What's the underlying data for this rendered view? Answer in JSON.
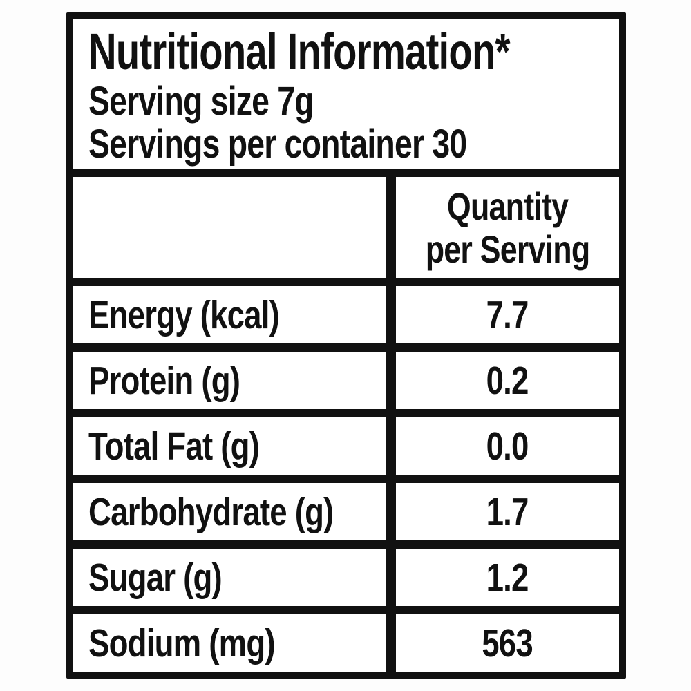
{
  "label": {
    "title": "Nutritional Information*",
    "serving_size": "Serving size 7g",
    "servings_per_container": "Servings per container 30",
    "column_header": {
      "line1": "Quantity",
      "line2": "per Serving"
    },
    "rows": [
      {
        "name": "Energy (kcal)",
        "value": "7.7"
      },
      {
        "name": "Protein (g)",
        "value": "0.2"
      },
      {
        "name": "Total Fat (g)",
        "value": "0.0"
      },
      {
        "name": "Carbohydrate (g)",
        "value": "1.7"
      },
      {
        "name": "Sugar (g)",
        "value": "1.2"
      },
      {
        "name": "Sodium (mg)",
        "value": "563"
      }
    ],
    "colors": {
      "ink": "#111111",
      "paper": "#ffffff"
    }
  }
}
